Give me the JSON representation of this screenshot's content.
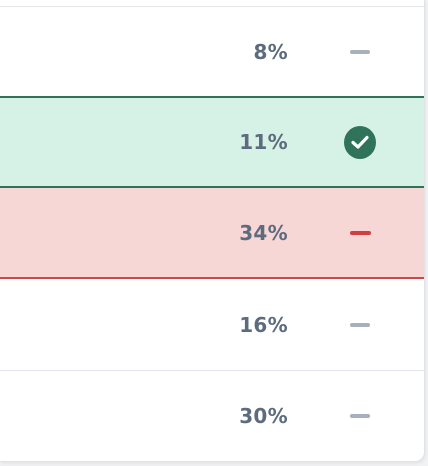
{
  "rows": [
    {
      "percent": "8%",
      "status": "dash-icon",
      "state": "normal"
    },
    {
      "percent": "11%",
      "status": "check-circle-icon",
      "state": "success"
    },
    {
      "percent": "34%",
      "status": "dash-icon",
      "state": "danger"
    },
    {
      "percent": "16%",
      "status": "dash-icon",
      "state": "normal"
    },
    {
      "percent": "30%",
      "status": "dash-icon",
      "state": "normal"
    }
  ],
  "colors": {
    "success_bg": "#d6f1e6",
    "success_accent": "#2f7358",
    "danger_bg": "#f7d6d6",
    "danger_accent": "#d33f3f",
    "text": "#5c6b7d",
    "neutral_dash": "#a7b1bc"
  }
}
